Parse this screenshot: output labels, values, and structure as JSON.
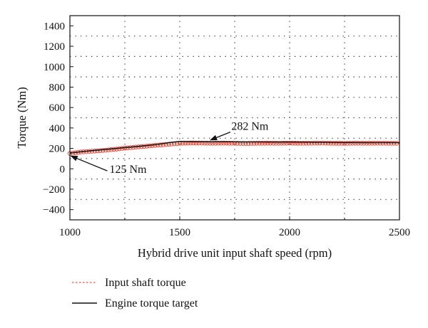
{
  "chart_data": {
    "type": "line",
    "title": "",
    "xlabel": "Hybrid drive unit input shaft speed (rpm)",
    "ylabel": "Torque (Nm)",
    "xlim": [
      1000,
      2500
    ],
    "ylim": [
      -500,
      1500
    ],
    "x_ticks": [
      "1000",
      "1500",
      "2000",
      "2500"
    ],
    "y_ticks": [
      "1400",
      "1200",
      "1000",
      "800",
      "600",
      "400",
      "200",
      "0",
      "−200",
      "−400"
    ],
    "grid": "dotted",
    "legend_position": "below",
    "series": [
      {
        "name": "Input shaft torque",
        "color": "#e8503f",
        "style": "dotted line with circle markers",
        "x": [
          1000,
          1050,
          1100,
          1150,
          1200,
          1250,
          1300,
          1350,
          1400,
          1450,
          1500,
          1550,
          1600,
          1650,
          1700,
          1750,
          1800,
          1850,
          1900,
          1950,
          2000,
          2050,
          2100,
          2150,
          2200,
          2250,
          2300,
          2350,
          2400,
          2450,
          2500
        ],
        "y": [
          150,
          165,
          172,
          180,
          190,
          203,
          212,
          222,
          232,
          240,
          250,
          253,
          252,
          250,
          252,
          250,
          248,
          250,
          251,
          250,
          252,
          250,
          251,
          252,
          250,
          249,
          251,
          250,
          251,
          250,
          250
        ]
      },
      {
        "name": "Engine torque target",
        "color": "#111111",
        "style": "solid",
        "x": [
          1000,
          1050,
          1100,
          1150,
          1200,
          1250,
          1300,
          1350,
          1400,
          1450,
          1500,
          1550,
          1600,
          1650,
          1700,
          1750,
          1800,
          1850,
          1900,
          1950,
          2000,
          2050,
          2100,
          2150,
          2200,
          2250,
          2300,
          2350,
          2400,
          2450,
          2500
        ],
        "y": [
          155,
          167,
          178,
          188,
          198,
          208,
          218,
          228,
          240,
          256,
          268,
          266,
          265,
          265,
          265,
          264,
          263,
          263,
          262,
          262,
          262,
          261,
          260,
          260,
          259,
          258,
          258,
          257,
          257,
          257,
          256
        ]
      }
    ],
    "annotations": [
      {
        "text": "282 Nm",
        "x": 1640,
        "y": 282
      },
      {
        "text": "125 Nm",
        "x": 1005,
        "y": 125
      }
    ]
  }
}
